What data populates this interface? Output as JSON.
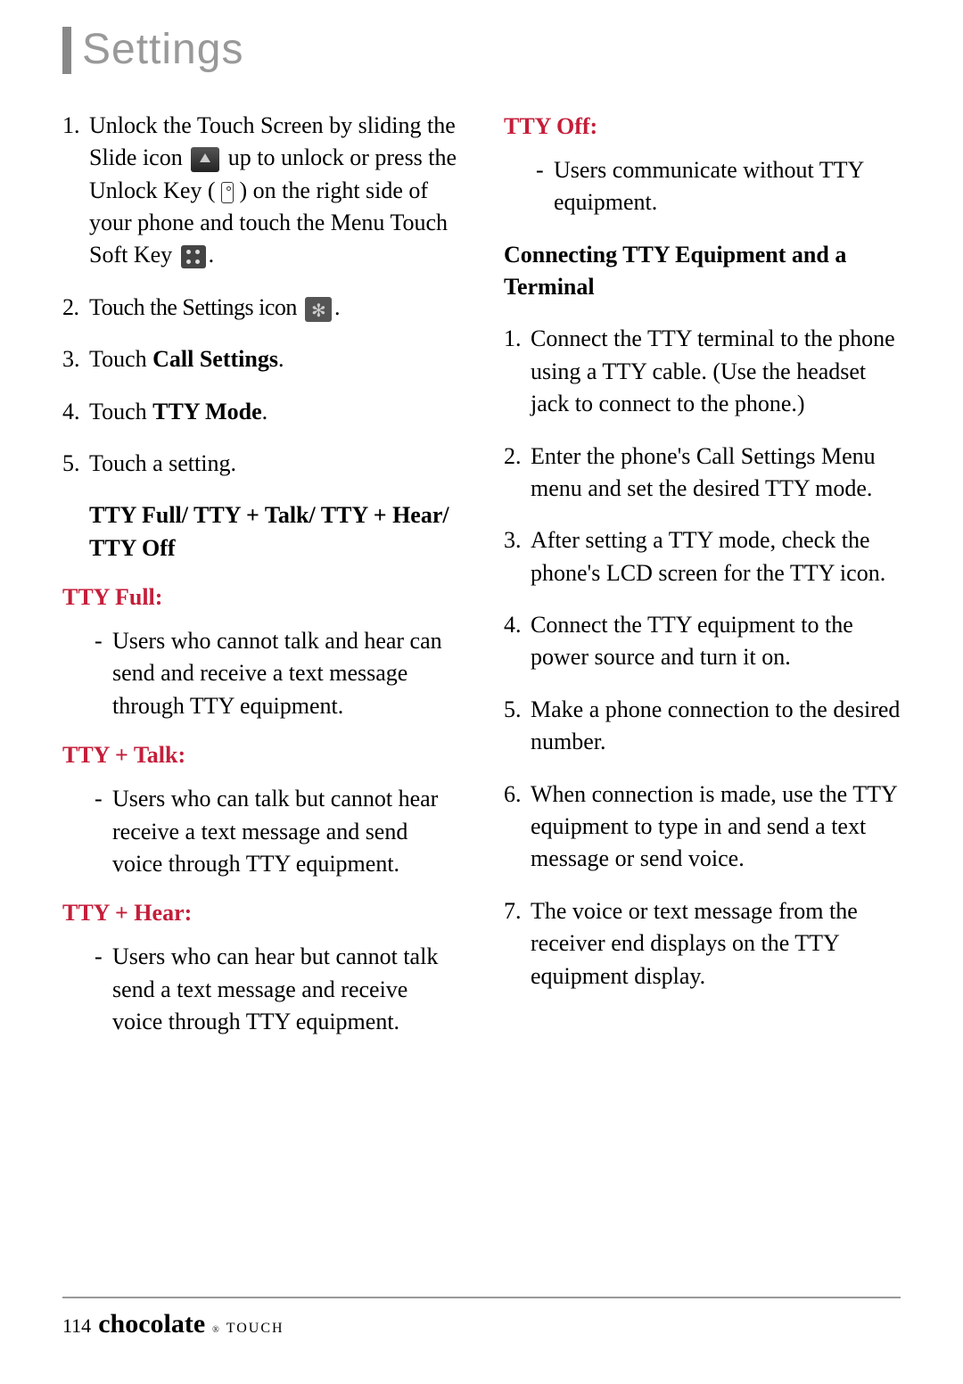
{
  "title": "Settings",
  "colors": {
    "title": "#999999",
    "red": "#c41e3a",
    "text": "#000000",
    "rule": "#999999"
  },
  "left": {
    "step1_a": "Unlock the Touch Screen by sliding the Slide icon",
    "step1_b": "up to unlock or press the Unlock Key (",
    "step1_c": ") on the right side of your phone and touch the Menu Touch Soft Key",
    "step1_end": ".",
    "step2_a": "Touch the Settings icon",
    "step2_end": ".",
    "step3_a": "Touch ",
    "step3_b": "Call Settings",
    "step3_end": ".",
    "step4_a": "Touch ",
    "step4_b": "TTY Mode",
    "step4_end": ".",
    "step5": "Touch a setting.",
    "options": "TTY Full/ TTY + Talk/ TTY + Hear/ TTY Off",
    "tty_full_h": "TTY Full:",
    "tty_full_b": "Users who cannot  talk and hear can send and receive a text message through TTY equipment.",
    "tty_talk_h": "TTY + Talk:",
    "tty_talk_b": "Users who can talk but cannot hear receive a text message and send voice through TTY equipment.",
    "tty_hear_h": "TTY + Hear:",
    "tty_hear_b": "Users who can hear but cannot talk send a text message and receive voice through TTY equipment."
  },
  "right": {
    "tty_off_h": "TTY Off:",
    "tty_off_b": "Users communicate without TTY equipment.",
    "conn_heading": "Connecting TTY Equipment and a Terminal",
    "c1": "Connect the TTY terminal to the phone using a TTY cable. (Use the headset jack to connect to the phone.)",
    "c2": "Enter the phone's Call Settings Menu menu and set the desired TTY mode.",
    "c3": "After setting a TTY mode, check the phone's LCD screen for the TTY icon.",
    "c4": "Connect the TTY equipment to the power source and turn it on.",
    "c5": "Make a phone connection to the desired number.",
    "c6": "When connection is made, use the TTY equipment to type in and send a text message or send voice.",
    "c7": "The voice or text message from the receiver end displays on the TTY equipment display."
  },
  "footer": {
    "page": "114",
    "brand": "chocolate",
    "reg": "®",
    "sub": "TOUCH"
  }
}
